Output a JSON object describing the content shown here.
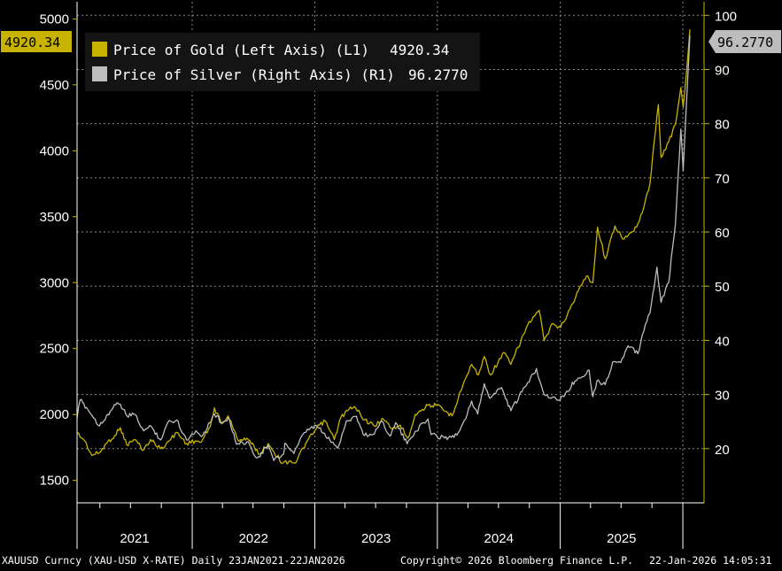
{
  "chart_data": {
    "type": "line",
    "title": "",
    "date_range": [
      "2021-01-23",
      "2026-01-22"
    ],
    "x_tick_labels": [
      "2021",
      "2022",
      "2023",
      "2024",
      "2025"
    ],
    "left_axis": {
      "ticks": [
        1500,
        2000,
        2500,
        3000,
        3500,
        4000,
        4500,
        5000
      ],
      "range": [
        1330,
        5130
      ]
    },
    "right_axis": {
      "ticks": [
        20,
        30,
        40,
        50,
        60,
        70,
        80,
        90,
        100
      ],
      "range": [
        10,
        102.5
      ]
    },
    "grid": true,
    "legend_position": "top-left",
    "series": [
      {
        "name": "Price of Gold (Left Axis) (L1)",
        "axis": "left",
        "color": "#c8b400",
        "last_value": "4920.34",
        "points": [
          [
            "2021-01-23",
            1860
          ],
          [
            "2021-02-15",
            1800
          ],
          [
            "2021-03-08",
            1690
          ],
          [
            "2021-03-31",
            1710
          ],
          [
            "2021-04-20",
            1780
          ],
          [
            "2021-05-15",
            1840
          ],
          [
            "2021-06-01",
            1900
          ],
          [
            "2021-06-20",
            1770
          ],
          [
            "2021-07-15",
            1810
          ],
          [
            "2021-08-09",
            1730
          ],
          [
            "2021-08-30",
            1810
          ],
          [
            "2021-09-28",
            1740
          ],
          [
            "2021-10-25",
            1800
          ],
          [
            "2021-11-16",
            1865
          ],
          [
            "2021-12-15",
            1780
          ],
          [
            "2022-01-10",
            1800
          ],
          [
            "2022-01-28",
            1790
          ],
          [
            "2022-02-24",
            1910
          ],
          [
            "2022-03-08",
            2050
          ],
          [
            "2022-03-30",
            1930
          ],
          [
            "2022-04-18",
            1990
          ],
          [
            "2022-05-16",
            1810
          ],
          [
            "2022-06-13",
            1820
          ],
          [
            "2022-07-21",
            1700
          ],
          [
            "2022-08-15",
            1780
          ],
          [
            "2022-09-27",
            1630
          ],
          [
            "2022-10-20",
            1650
          ],
          [
            "2022-11-03",
            1630
          ],
          [
            "2022-12-05",
            1780
          ],
          [
            "2023-01-15",
            1920
          ],
          [
            "2023-02-01",
            1950
          ],
          [
            "2023-02-28",
            1810
          ],
          [
            "2023-03-20",
            1980
          ],
          [
            "2023-04-13",
            2040
          ],
          [
            "2023-05-03",
            2050
          ],
          [
            "2023-05-30",
            1960
          ],
          [
            "2023-06-29",
            1910
          ],
          [
            "2023-07-20",
            1970
          ],
          [
            "2023-08-21",
            1890
          ],
          [
            "2023-09-12",
            1920
          ],
          [
            "2023-10-05",
            1820
          ],
          [
            "2023-10-27",
            2000
          ],
          [
            "2023-12-04",
            2070
          ],
          [
            "2023-12-28",
            2070
          ],
          [
            "2024-02-14",
            1990
          ],
          [
            "2024-03-08",
            2170
          ],
          [
            "2024-04-12",
            2380
          ],
          [
            "2024-05-02",
            2300
          ],
          [
            "2024-05-20",
            2440
          ],
          [
            "2024-06-07",
            2300
          ],
          [
            "2024-07-17",
            2470
          ],
          [
            "2024-08-07",
            2380
          ],
          [
            "2024-09-26",
            2680
          ],
          [
            "2024-10-30",
            2790
          ],
          [
            "2024-11-14",
            2560
          ],
          [
            "2024-12-10",
            2690
          ],
          [
            "2025-01-02",
            2660
          ],
          [
            "2025-01-30",
            2800
          ],
          [
            "2025-02-24",
            2940
          ],
          [
            "2025-03-20",
            3050
          ],
          [
            "2025-04-08",
            3000
          ],
          [
            "2025-04-22",
            3420
          ],
          [
            "2025-05-15",
            3180
          ],
          [
            "2025-06-13",
            3430
          ],
          [
            "2025-07-10",
            3330
          ],
          [
            "2025-08-08",
            3390
          ],
          [
            "2025-09-02",
            3530
          ],
          [
            "2025-09-25",
            3750
          ],
          [
            "2025-10-20",
            4350
          ],
          [
            "2025-10-28",
            3950
          ],
          [
            "2025-11-20",
            4070
          ],
          [
            "2025-12-10",
            4200
          ],
          [
            "2025-12-26",
            4480
          ],
          [
            "2026-01-02",
            4330
          ],
          [
            "2026-01-12",
            4600
          ],
          [
            "2026-01-22",
            4920.34
          ]
        ]
      },
      {
        "name": "Price of Silver (Right Axis) (R1)",
        "axis": "right",
        "color": "#bdbdbd",
        "last_value": "96.2770",
        "points": [
          [
            "2021-01-23",
            25.6
          ],
          [
            "2021-02-01",
            29.0
          ],
          [
            "2021-02-20",
            27.6
          ],
          [
            "2021-03-31",
            24.2
          ],
          [
            "2021-04-20",
            26.0
          ],
          [
            "2021-05-18",
            28.1
          ],
          [
            "2021-06-01",
            28.2
          ],
          [
            "2021-06-21",
            26.0
          ],
          [
            "2021-07-15",
            26.3
          ],
          [
            "2021-08-09",
            23.3
          ],
          [
            "2021-09-01",
            24.1
          ],
          [
            "2021-09-29",
            21.6
          ],
          [
            "2021-10-20",
            24.8
          ],
          [
            "2021-11-16",
            25.3
          ],
          [
            "2021-12-15",
            21.6
          ],
          [
            "2022-01-12",
            23.3
          ],
          [
            "2022-02-01",
            22.4
          ],
          [
            "2022-03-08",
            26.4
          ],
          [
            "2022-04-01",
            24.7
          ],
          [
            "2022-04-19",
            25.8
          ],
          [
            "2022-05-13",
            20.8
          ],
          [
            "2022-06-13",
            21.3
          ],
          [
            "2022-07-14",
            18.3
          ],
          [
            "2022-08-15",
            20.6
          ],
          [
            "2022-09-01",
            17.8
          ],
          [
            "2022-09-30",
            19.0
          ],
          [
            "2022-10-04",
            21.0
          ],
          [
            "2022-10-31",
            19.1
          ],
          [
            "2022-12-01",
            23.0
          ],
          [
            "2023-01-05",
            24.3
          ],
          [
            "2023-02-28",
            20.7
          ],
          [
            "2023-03-10",
            20.1
          ],
          [
            "2023-04-05",
            25.1
          ],
          [
            "2023-05-05",
            26.0
          ],
          [
            "2023-05-25",
            22.6
          ],
          [
            "2023-06-23",
            22.6
          ],
          [
            "2023-07-20",
            25.1
          ],
          [
            "2023-08-14",
            22.3
          ],
          [
            "2023-08-30",
            24.8
          ],
          [
            "2023-10-03",
            20.9
          ],
          [
            "2023-10-27",
            23.2
          ],
          [
            "2023-12-04",
            25.5
          ],
          [
            "2023-12-13",
            22.6
          ],
          [
            "2024-01-22",
            22.0
          ],
          [
            "2024-02-28",
            22.5
          ],
          [
            "2024-03-21",
            25.2
          ],
          [
            "2024-04-12",
            28.8
          ],
          [
            "2024-04-30",
            26.4
          ],
          [
            "2024-05-20",
            32.0
          ],
          [
            "2024-06-05",
            29.3
          ],
          [
            "2024-07-10",
            31.3
          ],
          [
            "2024-08-07",
            27.0
          ],
          [
            "2024-09-26",
            32.2
          ],
          [
            "2024-10-22",
            34.8
          ],
          [
            "2024-11-14",
            30.0
          ],
          [
            "2024-12-31",
            28.9
          ],
          [
            "2025-02-14",
            32.5
          ],
          [
            "2025-03-28",
            34.5
          ],
          [
            "2025-04-08",
            29.6
          ],
          [
            "2025-04-20",
            32.5
          ],
          [
            "2025-05-15",
            31.8
          ],
          [
            "2025-06-06",
            36.0
          ],
          [
            "2025-06-30",
            35.9
          ],
          [
            "2025-07-22",
            39.0
          ],
          [
            "2025-08-20",
            37.5
          ],
          [
            "2025-09-02",
            41.0
          ],
          [
            "2025-09-25",
            45.0
          ],
          [
            "2025-10-16",
            53.5
          ],
          [
            "2025-10-28",
            47.0
          ],
          [
            "2025-11-20",
            50.7
          ],
          [
            "2025-12-01",
            56.9
          ],
          [
            "2025-12-10",
            61.5
          ],
          [
            "2025-12-26",
            79.0
          ],
          [
            "2026-01-02",
            71.3
          ],
          [
            "2026-01-12",
            84.0
          ],
          [
            "2026-01-22",
            96.277
          ]
        ]
      }
    ]
  },
  "footer": {
    "left": "XAUUSD Curncy (XAU-USD X-RATE) Daily 23JAN2021-22JAN2026",
    "center": "Copyright© 2026 Bloomberg Finance L.P.",
    "right": "22-Jan-2026 14:05:31"
  }
}
